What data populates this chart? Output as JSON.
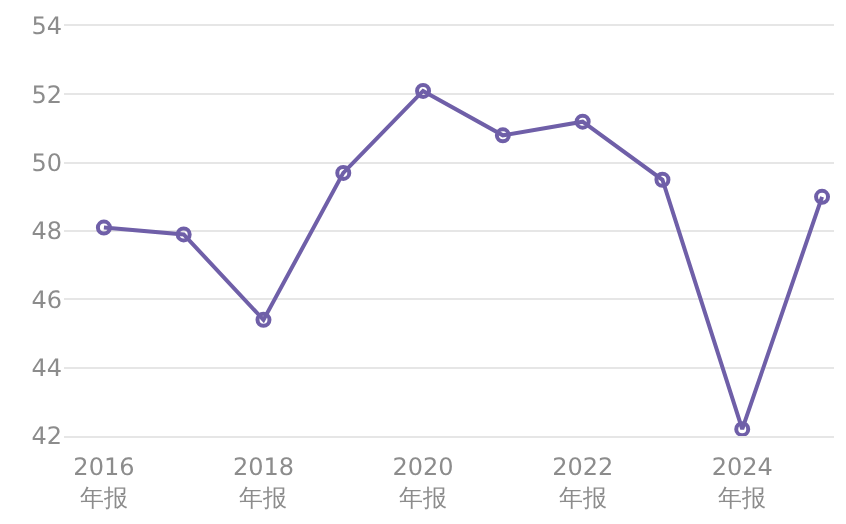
{
  "chart_data": {
    "type": "line",
    "categories": [
      "2016\n年报",
      null,
      "2018\n年报",
      null,
      "2020\n年报",
      null,
      "2022\n年报",
      null,
      "2024\n年报",
      null
    ],
    "series": [
      {
        "color": "#6f5fa8",
        "values": [
          48.1,
          47.9,
          45.4,
          49.7,
          52.1,
          50.8,
          51.2,
          49.5,
          42.2,
          49.0
        ]
      }
    ],
    "ylim": [
      42,
      54
    ],
    "yticks": [
      42,
      44,
      46,
      48,
      50,
      52,
      54
    ],
    "grid": "y",
    "marker": "circle",
    "line_style": "solid"
  }
}
